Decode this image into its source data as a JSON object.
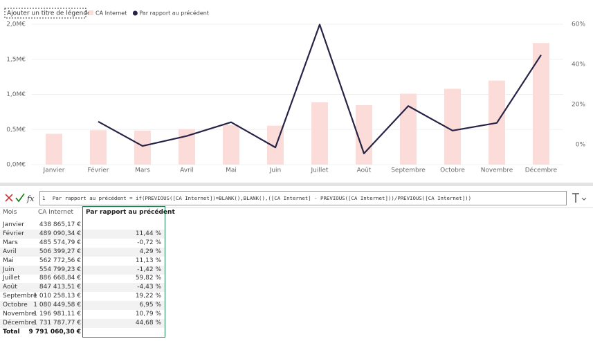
{
  "chart_data": {
    "type": "combo",
    "legend_title": "Ajouter un titre de légende",
    "legend": "top-left",
    "grid": true,
    "categories": [
      "Janvier",
      "Février",
      "Mars",
      "Avril",
      "Mai",
      "Juin",
      "Juillet",
      "Août",
      "Septembre",
      "Octobre",
      "Novembre",
      "Décembre"
    ],
    "series": [
      {
        "name": "CA Internet",
        "type": "bar",
        "color": "#fcdcd8",
        "values": [
          438865.17,
          489090.34,
          485574.79,
          506399.27,
          562772.56,
          554799.23,
          886668.84,
          847413.51,
          1010258.13,
          1080449.58,
          1196981.11,
          1731787.77
        ]
      },
      {
        "name": "Par rapport au précédent",
        "type": "line",
        "color": "#252447",
        "axis": "y2",
        "values": [
          null,
          11.44,
          -0.72,
          4.29,
          11.13,
          -1.42,
          59.82,
          -4.43,
          19.22,
          6.95,
          10.79,
          44.68
        ]
      }
    ],
    "ylim": [
      0,
      2000000
    ],
    "yticks": [
      {
        "value": 0,
        "label": "0,0M€"
      },
      {
        "value": 500000,
        "label": "0,5M€"
      },
      {
        "value": 1000000,
        "label": "1,0M€"
      },
      {
        "value": 1500000,
        "label": "1,5M€"
      },
      {
        "value": 2000000,
        "label": "2,0M€"
      }
    ],
    "y2lim": [
      -10,
      60
    ],
    "y2ticks": [
      {
        "value": 0,
        "label": "0%"
      },
      {
        "value": 20,
        "label": "20%"
      },
      {
        "value": 40,
        "label": "40%"
      },
      {
        "value": 60,
        "label": "60%"
      }
    ]
  },
  "formula_bar": {
    "icon": "fx",
    "line_number": "1",
    "formula": "Par rapport au précédent = if(PREVIOUS([CA Internet])=BLANK(),BLANK(),([CA Internet] - PREVIOUS([CA Internet]))/PREVIOUS([CA Internet]))"
  },
  "table": {
    "header": [
      "Mois",
      "CA Internet",
      "Par rapport au précédent"
    ],
    "rows": [
      [
        "Janvier",
        "438 865,17 €",
        null
      ],
      [
        "Février",
        "489 090,34 €",
        "11,44 %"
      ],
      [
        "Mars",
        "485 574,79 €",
        "-0,72 %"
      ],
      [
        "Avril",
        "506 399,27 €",
        "4,29 %"
      ],
      [
        "Mai",
        "562 772,56 €",
        "11,13 %"
      ],
      [
        "Juin",
        "554 799,23 €",
        "-1,42 %"
      ],
      [
        "Juillet",
        "886 668,84 €",
        "59,82 %"
      ],
      [
        "Août",
        "847 413,51 €",
        "-4,43 %"
      ],
      [
        "Septembre",
        "1 010 258,13 €",
        "19,22 %"
      ],
      [
        "Octobre",
        "1 080 449,58 €",
        "6,95 %"
      ],
      [
        "Novembre",
        "1 196 981,11 €",
        "10,79 %"
      ],
      [
        "Décembre",
        "1 731 787,77 €",
        "44,68 %"
      ],
      [
        "Total",
        "9 791 060,30 €",
        null
      ]
    ]
  }
}
